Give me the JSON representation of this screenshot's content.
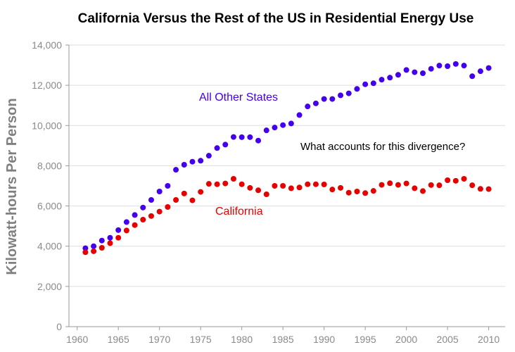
{
  "chart_data": {
    "type": "scatter",
    "title": "California Versus the Rest of the US in Residential Energy Use",
    "xlabel": "",
    "ylabel": "Kilowatt-hours Per Person",
    "xlim": [
      1959,
      2012
    ],
    "ylim": [
      0,
      14000
    ],
    "grid": true,
    "x_ticks": [
      1960,
      1965,
      1970,
      1975,
      1980,
      1985,
      1990,
      1995,
      2000,
      2005,
      2010
    ],
    "x_tick_labels": [
      "1960",
      "1965",
      "1970",
      "1975",
      "1980",
      "1985",
      "1990",
      "1995",
      "2000",
      "2005",
      "2010"
    ],
    "y_ticks": [
      0,
      2000,
      4000,
      6000,
      8000,
      10000,
      12000,
      14000
    ],
    "y_tick_labels": [
      "0",
      "2,000",
      "4,000",
      "6,000",
      "8,000",
      "10,000",
      "12,000",
      "14,000"
    ],
    "x": [
      1961,
      1962,
      1963,
      1964,
      1965,
      1966,
      1967,
      1968,
      1969,
      1970,
      1971,
      1972,
      1973,
      1974,
      1975,
      1976,
      1977,
      1978,
      1979,
      1980,
      1981,
      1982,
      1983,
      1984,
      1985,
      1986,
      1987,
      1988,
      1989,
      1990,
      1991,
      1992,
      1993,
      1994,
      1995,
      1996,
      1997,
      1998,
      1999,
      2000,
      2001,
      2002,
      2003,
      2004,
      2005,
      2006,
      2007,
      2008,
      2009,
      2010
    ],
    "series": [
      {
        "name": "All Other States",
        "color": "#4400ee",
        "values": [
          3900,
          4000,
          4280,
          4420,
          4800,
          5200,
          5550,
          5920,
          6300,
          6720,
          7000,
          7800,
          8050,
          8200,
          8250,
          8500,
          8880,
          9050,
          9430,
          9420,
          9420,
          9250,
          9760,
          9900,
          10020,
          10100,
          10520,
          10950,
          11100,
          11320,
          11320,
          11500,
          11600,
          11820,
          12050,
          12100,
          12280,
          12380,
          12520,
          12760,
          12650,
          12600,
          12820,
          12980,
          12950,
          13060,
          12980,
          12450,
          12700,
          12860
        ]
      },
      {
        "name": "California",
        "color": "#e60000",
        "values": [
          3700,
          3750,
          3920,
          4150,
          4420,
          4780,
          5050,
          5320,
          5500,
          5720,
          5950,
          6300,
          6620,
          6280,
          6700,
          7100,
          7080,
          7120,
          7350,
          7080,
          6900,
          6780,
          6580,
          7000,
          7000,
          6880,
          6920,
          7080,
          7080,
          7070,
          6820,
          6900,
          6660,
          6720,
          6640,
          6750,
          7050,
          7130,
          7050,
          7120,
          6880,
          6740,
          7040,
          7030,
          7280,
          7250,
          7350,
          7030,
          6850,
          6840
        ]
      }
    ],
    "series_labels": [
      "All Other States",
      "California"
    ],
    "annotations": [
      "What accounts for this divergence?"
    ]
  }
}
